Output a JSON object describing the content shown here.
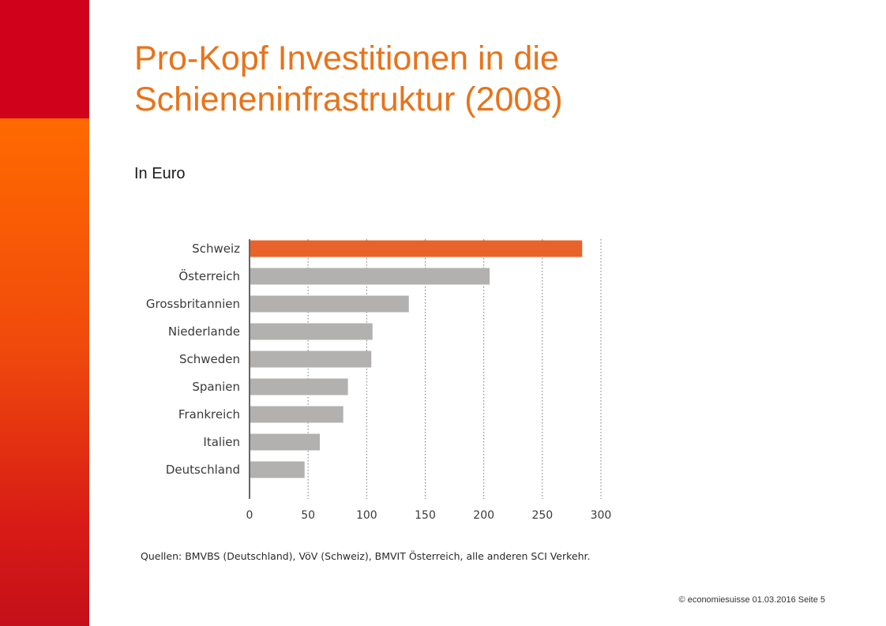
{
  "slide": {
    "title_line1": "Pro-Kopf Investitionen in die",
    "title_line2": "Schieneninfrastruktur (2008)",
    "subtitle": "In Euro",
    "source": "Quellen: BMVBS (Deutschland), VöV (Schweiz), BMVIT Österreich, alle anderen SCI Verkehr.",
    "footer": "© economiesuisse 01.03.2016  Seite 5"
  },
  "colors": {
    "accent": "#e8731a",
    "highlight_bar": "#e8622a",
    "default_bar": "#b3b1af",
    "sidebar_top": "#d0021b",
    "sidebar_bottom": "#ff6a00"
  },
  "chart_data": {
    "type": "bar",
    "orientation": "horizontal",
    "categories": [
      "Schweiz",
      "Österreich",
      "Grossbritannien",
      "Niederlande",
      "Schweden",
      "Spanien",
      "Frankreich",
      "Italien",
      "Deutschland"
    ],
    "values": [
      284,
      205,
      136,
      105,
      104,
      84,
      80,
      60,
      47
    ],
    "highlight": "Schweiz",
    "xlim": [
      0,
      300
    ],
    "xticks": [
      0,
      50,
      100,
      150,
      200,
      250,
      300
    ],
    "grid": "vertical dotted",
    "title": "",
    "xlabel": "",
    "ylabel": ""
  }
}
